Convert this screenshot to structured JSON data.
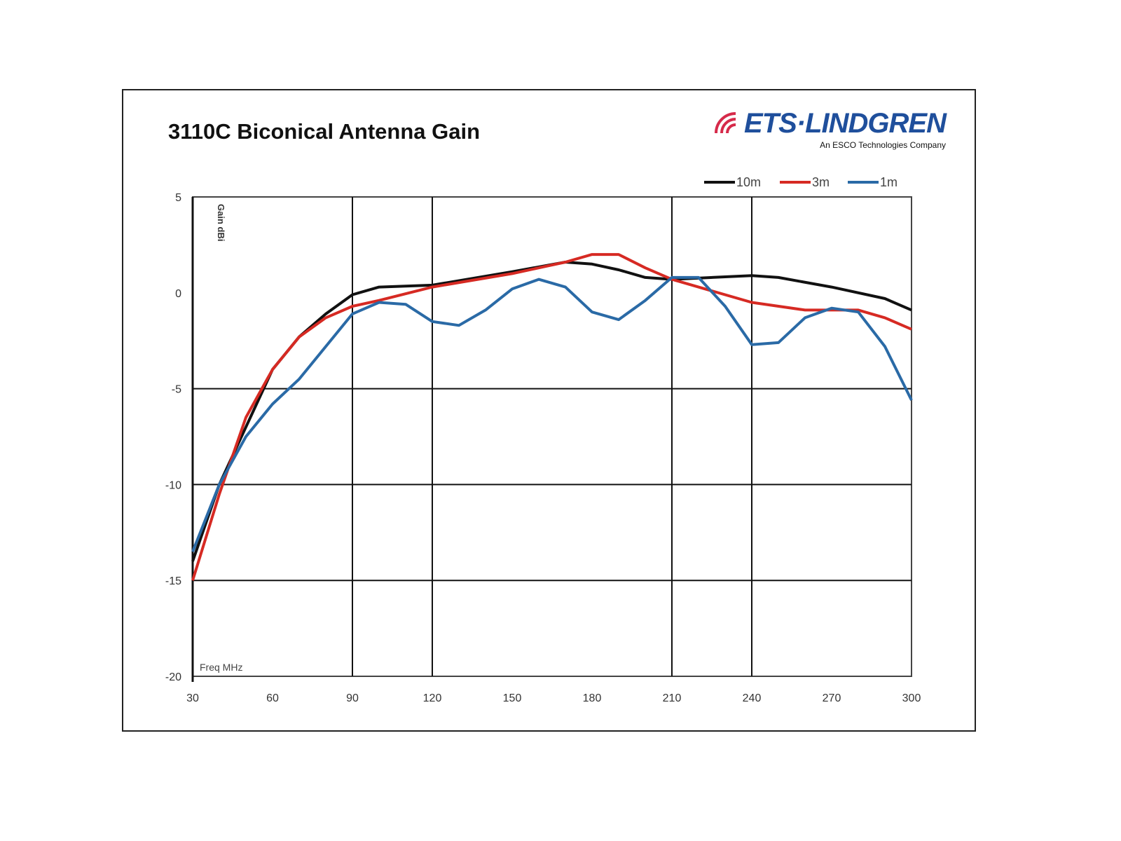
{
  "header": {
    "title": "3110C Biconical Antenna Gain",
    "logo_text": "ETS·LINDGREN",
    "logo_subtitle": "An ESCO Technologies Company"
  },
  "chart_data": {
    "type": "line",
    "title": "3110C Biconical Antenna Gain",
    "xlabel": "Freq MHz",
    "ylabel": "Gain dBi",
    "xlim": [
      30,
      300
    ],
    "ylim": [
      -20,
      5
    ],
    "xticks": [
      30,
      60,
      90,
      120,
      150,
      180,
      210,
      240,
      270,
      300
    ],
    "yticks": [
      5,
      0,
      -5,
      -10,
      -15,
      -20
    ],
    "x_gridlines": [
      90,
      120,
      210,
      240
    ],
    "y_gridlines": [
      -5,
      -10,
      -15
    ],
    "legend_position": "top-right",
    "series": [
      {
        "name": "10m",
        "color": "#111111",
        "x": [
          30,
          40,
          50,
          60,
          70,
          80,
          90,
          100,
          120,
          150,
          170,
          180,
          190,
          200,
          210,
          240,
          250,
          270,
          290,
          300
        ],
        "y": [
          -14,
          -10,
          -7,
          -4,
          -2.3,
          -1.1,
          -0.1,
          0.3,
          0.4,
          1.1,
          1.6,
          1.5,
          1.2,
          0.8,
          0.7,
          0.9,
          0.8,
          0.3,
          -0.3,
          -0.9
        ]
      },
      {
        "name": "3m",
        "color": "#d62a23",
        "x": [
          30,
          40,
          50,
          60,
          70,
          80,
          90,
          100,
          120,
          150,
          170,
          180,
          190,
          200,
          210,
          220,
          240,
          260,
          280,
          290,
          300
        ],
        "y": [
          -15,
          -10.5,
          -6.5,
          -4,
          -2.3,
          -1.3,
          -0.7,
          -0.4,
          0.3,
          1,
          1.6,
          2,
          2,
          1.3,
          0.7,
          0.3,
          -0.5,
          -0.9,
          -0.9,
          -1.3,
          -1.9
        ]
      },
      {
        "name": "1m",
        "color": "#2a6aa6",
        "x": [
          30,
          40,
          50,
          60,
          70,
          80,
          90,
          100,
          110,
          120,
          130,
          140,
          150,
          160,
          170,
          180,
          190,
          200,
          210,
          220,
          230,
          240,
          250,
          260,
          270,
          280,
          290,
          300
        ],
        "y": [
          -13.5,
          -10,
          -7.5,
          -5.8,
          -4.5,
          -2.8,
          -1.1,
          -0.5,
          -0.6,
          -1.5,
          -1.7,
          -0.9,
          0.2,
          0.7,
          0.3,
          -1,
          -1.4,
          -0.4,
          0.8,
          0.8,
          -0.7,
          -2.7,
          -2.6,
          -1.3,
          -0.8,
          -1,
          -2.8,
          -5.6
        ]
      }
    ]
  }
}
